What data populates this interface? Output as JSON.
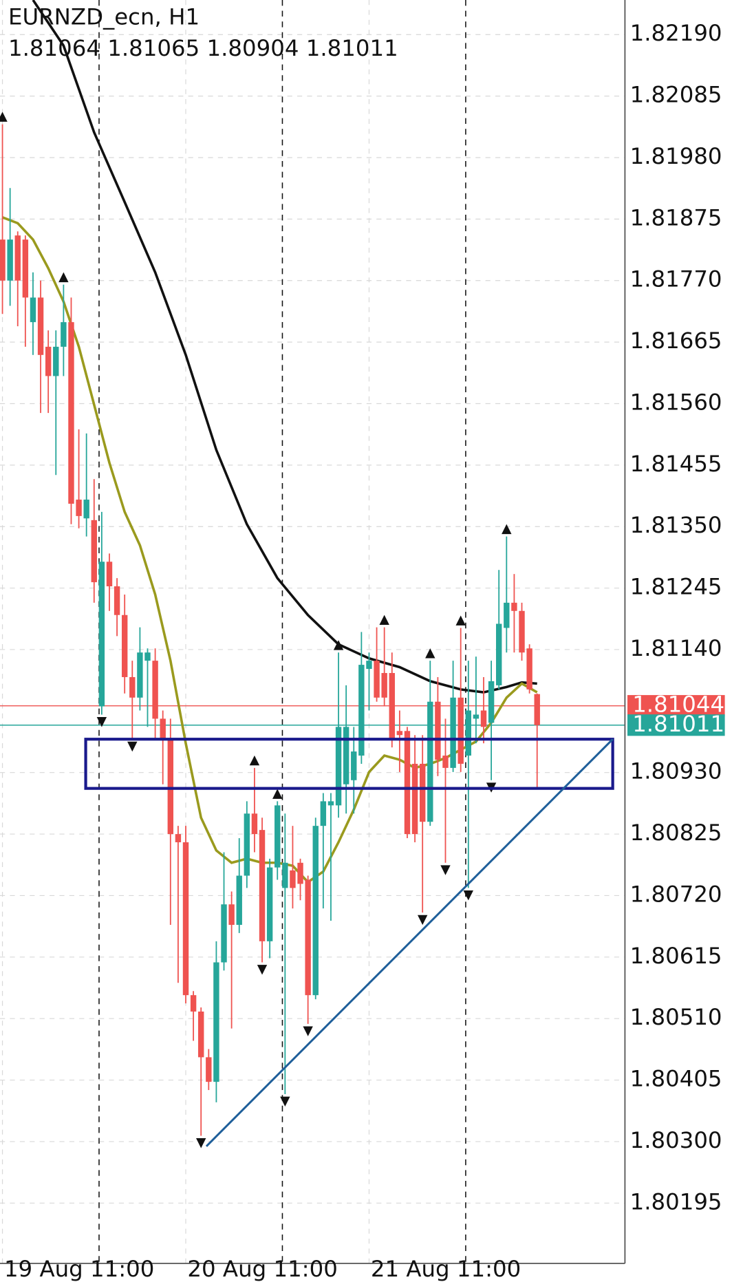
{
  "chart_data": {
    "type": "candlestick",
    "title": "EURNZD_ecn, H1",
    "x": [
      0,
      1,
      2,
      3,
      4,
      5,
      6,
      7,
      8,
      9,
      10,
      11,
      12,
      13,
      14,
      15,
      16,
      17,
      18,
      19,
      20,
      21,
      22,
      23,
      24,
      25,
      26,
      27,
      28,
      29,
      30,
      31,
      32,
      33,
      34,
      35,
      36,
      37,
      38,
      39,
      40,
      41,
      42,
      43,
      44,
      45,
      46,
      47,
      48,
      49,
      50,
      51,
      52,
      53,
      54,
      55,
      56,
      57,
      58,
      59,
      60,
      61,
      62,
      63,
      64,
      65,
      66,
      67,
      68,
      69,
      70
    ],
    "open": [
      1.8184,
      1.8177,
      1.81847,
      1.8184,
      1.81699,
      1.81741,
      1.81657,
      1.81607,
      1.81657,
      1.81699,
      1.81396,
      1.81364,
      1.81361,
      1.81043,
      1.8129,
      1.81248,
      1.81199,
      1.81093,
      1.81058,
      1.81121,
      1.81121,
      1.81022,
      1.80987,
      1.80825,
      1.80811,
      1.8055,
      1.80522,
      1.80444,
      1.80402,
      1.80606,
      1.80705,
      1.8067,
      1.80754,
      1.8086,
      1.80832,
      1.80642,
      1.80768,
      1.80733,
      1.80763,
      1.80776,
      1.80747,
      1.8055,
      1.80839,
      1.80874,
      1.80874,
      1.8091,
      1.80917,
      1.80959,
      1.81107,
      1.81121,
      1.811,
      1.811,
      1.81001,
      1.81001,
      1.80945,
      1.80945,
      1.80846,
      1.81051,
      1.80959,
      1.80938,
      1.81058,
      1.80959,
      1.81022,
      1.81036,
      1.81015,
      1.81079,
      1.81177,
      1.8122,
      1.81206,
      1.81142,
      1.81064
    ],
    "high": [
      1.82037,
      1.81928,
      1.81854,
      1.81847,
      1.81784,
      1.8177,
      1.81685,
      1.81685,
      1.81763,
      1.81741,
      1.81516,
      1.81509,
      1.81431,
      1.81375,
      1.81304,
      1.81262,
      1.81234,
      1.81121,
      1.81178,
      1.81142,
      1.81142,
      1.81036,
      1.81022,
      1.80839,
      1.80839,
      1.80557,
      1.80529,
      1.80458,
      1.80642,
      1.80794,
      1.80727,
      1.80818,
      1.80881,
      1.80938,
      1.80853,
      1.80783,
      1.80881,
      1.8086,
      1.80839,
      1.80783,
      1.80754,
      1.80853,
      1.80895,
      1.80895,
      1.81135,
      1.81079,
      1.81008,
      1.8117,
      1.81135,
      1.81178,
      1.81178,
      1.81135,
      1.81036,
      1.81008,
      1.80994,
      1.80994,
      1.81121,
      1.81093,
      1.81022,
      1.81121,
      1.81177,
      1.81121,
      1.81128,
      1.81093,
      1.81121,
      1.81276,
      1.81333,
      1.81269,
      1.8122,
      1.81149,
      1.81065
    ],
    "low": [
      1.81713,
      1.81727,
      1.81692,
      1.81657,
      1.81643,
      1.81544,
      1.81544,
      1.81438,
      1.81607,
      1.81354,
      1.81347,
      1.81333,
      1.8122,
      1.81029,
      1.81206,
      1.81163,
      1.81065,
      1.80987,
      1.81036,
      1.81008,
      1.80987,
      1.8091,
      1.8067,
      1.80571,
      1.80536,
      1.80472,
      1.8031,
      1.80388,
      1.80367,
      1.80592,
      1.80493,
      1.80656,
      1.80733,
      1.80794,
      1.80606,
      1.80613,
      1.80747,
      1.80381,
      1.80698,
      1.80712,
      1.80501,
      1.80543,
      1.80698,
      1.80677,
      1.80853,
      1.8086,
      1.8086,
      1.80945,
      1.81036,
      1.81051,
      1.81043,
      1.80973,
      1.80931,
      1.80818,
      1.80811,
      1.80691,
      1.80839,
      1.80924,
      1.80776,
      1.80931,
      1.80931,
      1.80733,
      1.8098,
      1.8098,
      1.80917,
      1.81072,
      1.81135,
      1.81135,
      1.81121,
      1.81065,
      1.80904
    ],
    "close": [
      1.8177,
      1.8184,
      1.8177,
      1.81741,
      1.81741,
      1.81643,
      1.81607,
      1.81657,
      1.81699,
      1.81389,
      1.81368,
      1.81396,
      1.81255,
      1.8129,
      1.81248,
      1.81199,
      1.81093,
      1.81058,
      1.81135,
      1.81135,
      1.81022,
      1.80987,
      1.80825,
      1.80811,
      1.8055,
      1.80522,
      1.80444,
      1.80402,
      1.80606,
      1.80705,
      1.8067,
      1.80754,
      1.8086,
      1.80825,
      1.80642,
      1.80768,
      1.80874,
      1.80776,
      1.80733,
      1.8074,
      1.8055,
      1.80839,
      1.80881,
      1.80881,
      1.81008,
      1.81008,
      1.80966,
      1.81114,
      1.81121,
      1.81058,
      1.81058,
      1.80987,
      1.80994,
      1.80825,
      1.80825,
      1.80846,
      1.81051,
      1.80952,
      1.80938,
      1.81058,
      1.80945,
      1.81036,
      1.81029,
      1.81008,
      1.81086,
      1.81184,
      1.8122,
      1.81206,
      1.81135,
      1.81072,
      1.81011
    ],
    "up_color": "#26a69a",
    "down_color": "#ef5350",
    "xlim": [
      -0.32,
      81.5
    ],
    "ylim": [
      1.80092,
      1.82249
    ],
    "xticks": [
      {
        "value": 0,
        "label": "19 Aug 11:00"
      },
      {
        "value": 24,
        "label": "20 Aug 11:00"
      },
      {
        "value": 48,
        "label": "21 Aug 11:00"
      }
    ],
    "yticks": [
      {
        "value": 1.8219,
        "label": "1.82190"
      },
      1.82085,
      {
        "value": 1.8198,
        "label": "1.81980"
      },
      1.81875,
      {
        "value": 1.8177,
        "label": "1.81770"
      },
      1.81665,
      {
        "value": 1.8156,
        "label": "1.81560"
      },
      1.81455,
      {
        "value": 1.8135,
        "label": "1.81350"
      },
      1.81245,
      {
        "value": 1.8114,
        "label": "1.81140"
      },
      {
        "value": 1.8093,
        "label": "1.80930"
      },
      1.80825,
      {
        "value": 1.8072,
        "label": "1.80720"
      },
      1.80615,
      {
        "value": 1.8051,
        "label": "1.80510"
      },
      1.80405,
      {
        "value": 1.803,
        "label": "1.80300"
      },
      1.80195
    ],
    "grid": true,
    "ask": 1.81044,
    "moving_averages": [
      {
        "color": "#111111",
        "x": [
          4,
          8,
          12,
          16,
          20,
          24,
          28,
          32,
          36,
          40,
          44,
          48,
          52,
          56,
          60,
          63,
          66,
          68,
          70
        ],
        "values": [
          1.82249,
          1.82171,
          1.82023,
          1.81904,
          1.81784,
          1.81643,
          1.81481,
          1.81354,
          1.81262,
          1.81199,
          1.81149,
          1.81125,
          1.8111,
          1.81086,
          1.81072,
          1.81067,
          1.81076,
          1.81084,
          1.81082
        ]
      },
      {
        "color": "#9a9a1e",
        "x": [
          0,
          2,
          4,
          6,
          8,
          10,
          12,
          14,
          16,
          18,
          20,
          22,
          24,
          26,
          28,
          30,
          32,
          34,
          36,
          38,
          40,
          42,
          44,
          46,
          48,
          50,
          52,
          54,
          56,
          58,
          60,
          62,
          64,
          66,
          68,
          70
        ],
        "values": [
          1.81878,
          1.81868,
          1.8184,
          1.81791,
          1.81734,
          1.81657,
          1.81558,
          1.81459,
          1.81375,
          1.81318,
          1.81234,
          1.81121,
          1.8098,
          1.80853,
          1.80797,
          1.80776,
          1.80783,
          1.80776,
          1.80776,
          1.80771,
          1.80743,
          1.80761,
          1.80811,
          1.80867,
          1.80931,
          1.80959,
          1.80952,
          1.80938,
          1.80945,
          1.80955,
          1.80969,
          1.80983,
          1.81015,
          1.81058,
          1.81082,
          1.81067
        ]
      }
    ],
    "fractals_up": [
      0,
      8,
      33,
      36,
      44,
      50,
      56,
      60,
      66
    ],
    "fractals_down": [
      13,
      17,
      26,
      34,
      37,
      40,
      55,
      58,
      61,
      64
    ],
    "vlines": [
      12.65,
      36.65,
      60.65
    ],
    "rectangle": {
      "x": [
        10.9,
        79.9
      ],
      "y": [
        1.80903,
        1.80987
      ],
      "color": "#1a1a8c"
    },
    "trendline": {
      "x": [
        26.7,
        79.9
      ],
      "y": [
        1.80292,
        1.80987
      ],
      "color": "#1f5f9a"
    }
  }
}
